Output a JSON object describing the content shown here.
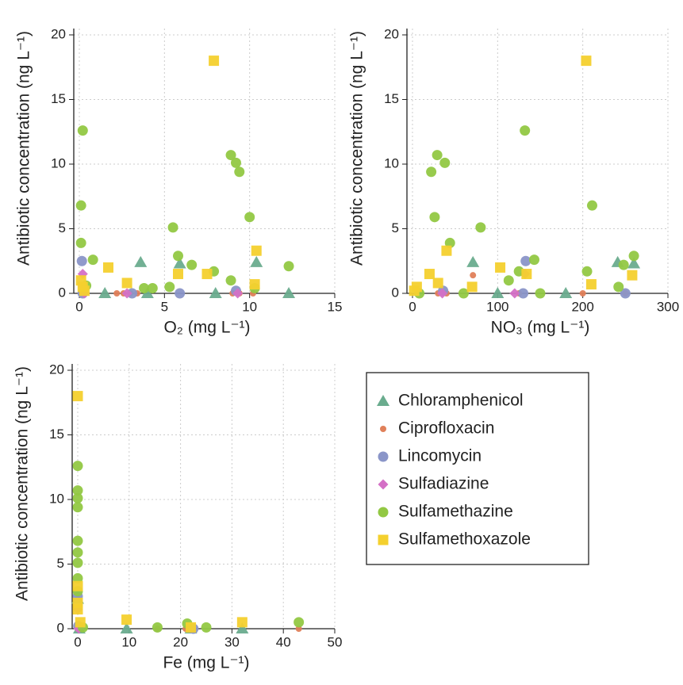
{
  "chart_data": [
    {
      "type": "scatter",
      "xlabel": "O₂ (mg L⁻¹)",
      "ylabel": "Antibiotic concentration (ng L⁻¹)",
      "xlim": [
        0,
        15
      ],
      "ylim": [
        0,
        20
      ],
      "xticks": [
        0,
        5,
        10,
        15
      ],
      "yticks": [
        0,
        5,
        10,
        15,
        20
      ],
      "grid": true,
      "series": [
        {
          "x": [
            3.6,
            5.9,
            10.4,
            1.5,
            4,
            8,
            12.3
          ],
          "values": [
            2.4,
            2.3,
            2.4,
            0,
            0,
            0,
            0
          ]
        },
        {
          "x": [
            2.2,
            2.6,
            3.0,
            3.4,
            0.3,
            9.0,
            9.4,
            10.2
          ],
          "values": [
            0,
            0,
            0,
            0,
            0,
            0,
            0,
            0
          ]
        },
        {
          "x": [
            0.15,
            0.2,
            9.2,
            5.9,
            3.1
          ],
          "values": [
            2.5,
            0,
            0.2,
            0,
            0
          ]
        },
        {
          "x": [
            0.2,
            0.3,
            9.3,
            2.8
          ],
          "values": [
            1.5,
            0,
            0,
            0
          ]
        },
        {
          "x": [
            0.2,
            0.1,
            0.1,
            0.8,
            5.5,
            5.8,
            6.6,
            7.9,
            8.9,
            9.2,
            9.4,
            10.0,
            8.9,
            12.3,
            5.3,
            3.8,
            4.3,
            10.3,
            0.4
          ],
          "values": [
            12.6,
            6.8,
            3.9,
            2.6,
            5.1,
            2.9,
            2.2,
            1.7,
            10.7,
            10.1,
            9.4,
            5.9,
            1.0,
            2.1,
            0.5,
            0.4,
            0.4,
            0.4,
            0.6
          ]
        },
        {
          "x": [
            7.9,
            1.7,
            10.4,
            5.8,
            7.5,
            10.3,
            2.8,
            0.1,
            0.2,
            0.3
          ],
          "values": [
            18,
            2.0,
            3.3,
            1.5,
            1.5,
            0.7,
            0.8,
            1.0,
            0.5,
            0.2
          ]
        }
      ]
    },
    {
      "type": "scatter",
      "xlabel": "NO₃ (mg L⁻¹)",
      "ylabel": "Antibiotic concentration (ng L⁻¹)",
      "xlim": [
        0,
        300
      ],
      "ylim": [
        0,
        20
      ],
      "xticks": [
        0,
        100,
        200,
        300
      ],
      "yticks": [
        0,
        5,
        10,
        15,
        20
      ],
      "grid": true,
      "series": [
        {
          "x": [
            71,
            241,
            260,
            100,
            180
          ],
          "values": [
            2.4,
            2.4,
            2.3,
            0,
            0
          ]
        },
        {
          "x": [
            71,
            30,
            40,
            125,
            200,
            250
          ],
          "values": [
            1.4,
            0,
            0,
            0,
            0,
            0
          ]
        },
        {
          "x": [
            133,
            36,
            130,
            250
          ],
          "values": [
            2.5,
            0.2,
            0,
            0
          ]
        },
        {
          "x": [
            132,
            120,
            35
          ],
          "values": [
            1.5,
            0,
            0
          ]
        },
        {
          "x": [
            132,
            29,
            22,
            38,
            26,
            44,
            211,
            80,
            143,
            260,
            248,
            205,
            113,
            125,
            242,
            8,
            60,
            150
          ],
          "values": [
            12.6,
            10.7,
            9.4,
            10.1,
            5.9,
            3.9,
            6.8,
            5.1,
            2.6,
            2.9,
            2.2,
            1.7,
            1.0,
            1.7,
            0.5,
            0,
            0,
            0
          ]
        },
        {
          "x": [
            204,
            40,
            20,
            103,
            134,
            258,
            210,
            30,
            5,
            70,
            2
          ],
          "values": [
            18,
            3.3,
            1.5,
            2.0,
            1.5,
            1.4,
            0.7,
            0.8,
            0.5,
            0.5,
            0.2
          ]
        }
      ]
    },
    {
      "type": "scatter",
      "xlabel": "Fe (mg L⁻¹)",
      "ylabel": "Antibiotic concentration (ng L⁻¹)",
      "xlim": [
        0,
        50
      ],
      "ylim": [
        0,
        20
      ],
      "xticks": [
        0,
        10,
        20,
        30,
        40,
        50
      ],
      "yticks": [
        0,
        5,
        10,
        15,
        20
      ],
      "grid": true,
      "series": [
        {
          "x": [
            0,
            0.3,
            9.5,
            22,
            32
          ],
          "values": [
            2.3,
            0,
            0,
            0,
            0
          ]
        },
        {
          "x": [
            0,
            15.5,
            21,
            43
          ],
          "values": [
            0,
            0,
            0,
            0
          ]
        },
        {
          "x": [
            0,
            0.1,
            22.5
          ],
          "values": [
            2.5,
            0.2,
            0
          ]
        },
        {
          "x": [
            0,
            0.2
          ],
          "values": [
            1.5,
            0
          ]
        },
        {
          "x": [
            0,
            0,
            0,
            0,
            0,
            0,
            0,
            0,
            0,
            21.3,
            43,
            25,
            15.5,
            1
          ],
          "values": [
            12.6,
            10.7,
            10.1,
            9.4,
            6.8,
            5.9,
            5.1,
            3.9,
            2.9,
            0.4,
            0.5,
            0.1,
            0.1,
            0.1
          ]
        },
        {
          "x": [
            0,
            0,
            0,
            0,
            9.5,
            32,
            0.5,
            22
          ],
          "values": [
            18,
            3.3,
            2.0,
            1.5,
            0.7,
            0.5,
            0.5,
            0.1
          ]
        }
      ]
    }
  ],
  "legend": {
    "entries": [
      {
        "name": "Chloramphenicol",
        "color": "#6aac8e",
        "marker": "triangle"
      },
      {
        "name": "Ciprofloxacin",
        "color": "#e0805a",
        "marker": "dot"
      },
      {
        "name": "Lincomycin",
        "color": "#8a95c8",
        "marker": "circle"
      },
      {
        "name": "Sulfadiazine",
        "color": "#d470c6",
        "marker": "diamond"
      },
      {
        "name": "Sulfamethazine",
        "color": "#92c843",
        "marker": "circle"
      },
      {
        "name": "Sulfamethoxazole",
        "color": "#f4d02e",
        "marker": "square"
      }
    ]
  }
}
